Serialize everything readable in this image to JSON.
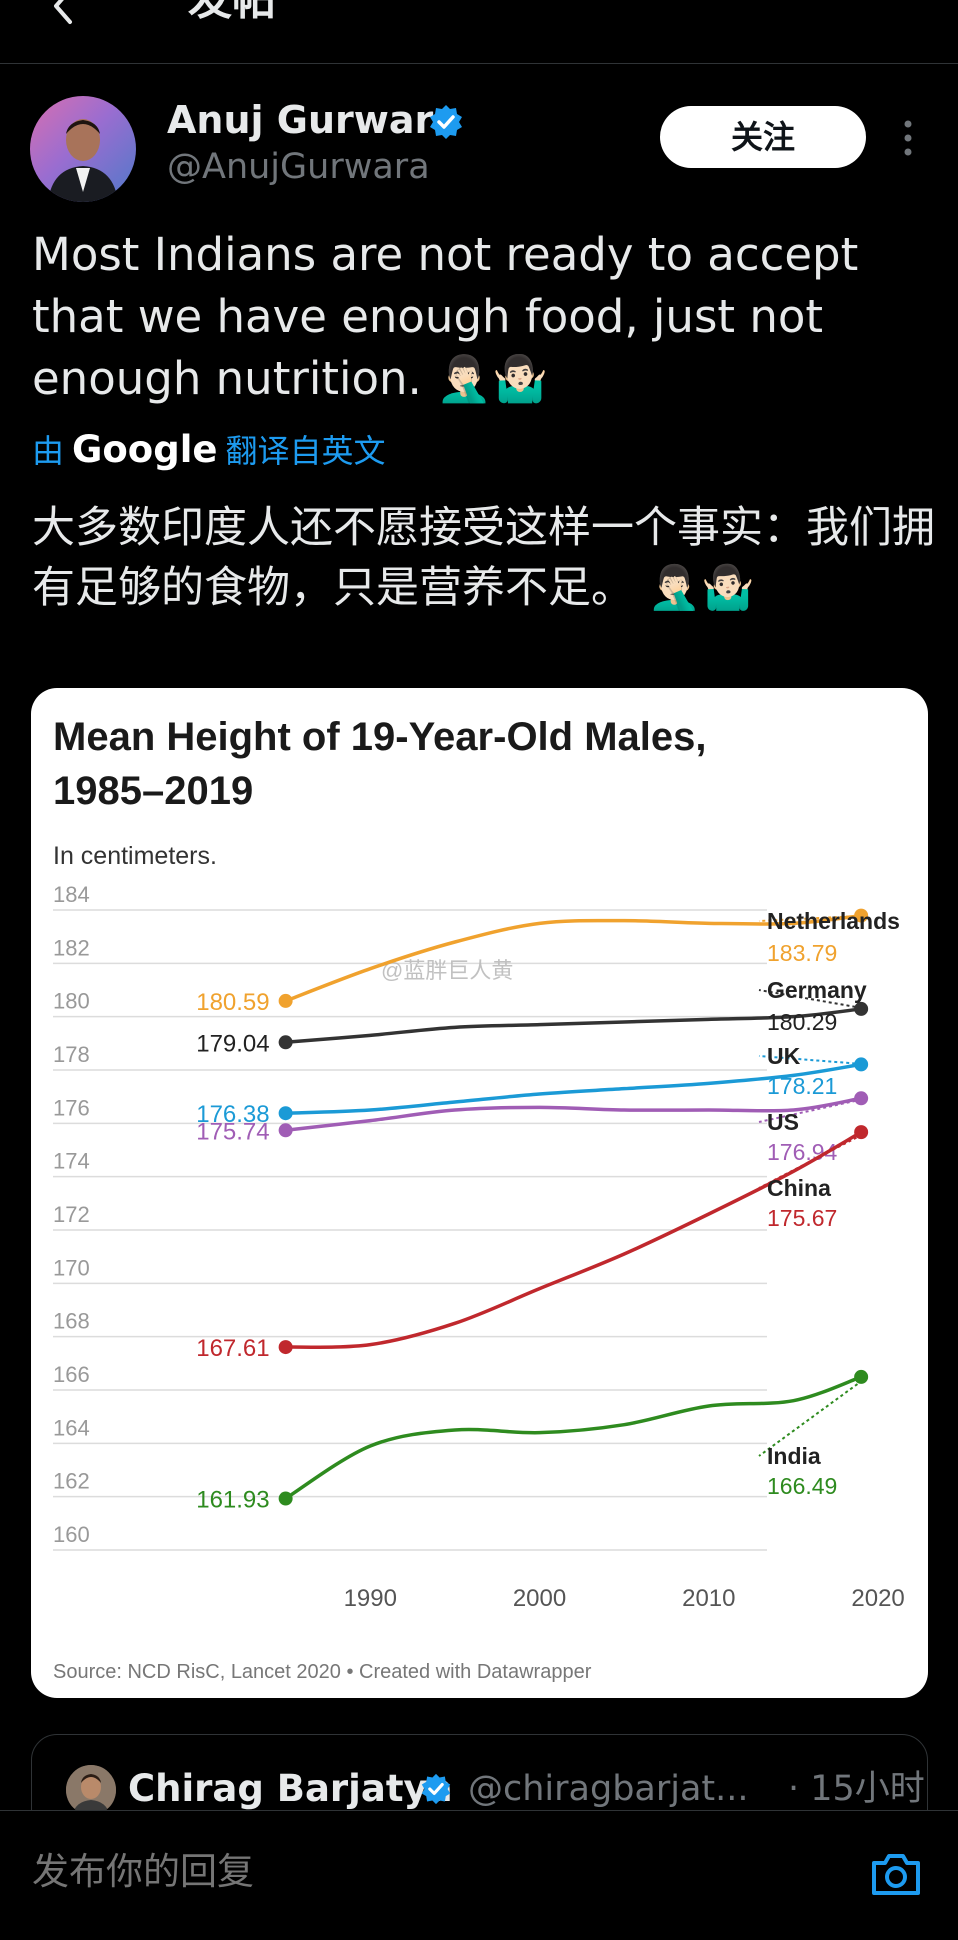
{
  "header": {
    "title": "发帖"
  },
  "author": {
    "name": "Anuj Gurwara",
    "handle": "@AnujGurwara"
  },
  "follow_label": "关注",
  "tweet": {
    "text": "Most Indians are not ready to accept that we have enough food, just not enough nutrition. 🤦🏻‍♂️🤷🏻‍♂️"
  },
  "translation": {
    "prefix": "由",
    "provider": "Google",
    "suffix": "翻译自英文",
    "text": "大多数印度人还不愿接受这样一个事实：我们拥有足够的食物，只是营养不足。 🤦🏻‍♂️🤷🏻‍♂️"
  },
  "quote": {
    "name": "Chirag Barjatya",
    "handle": "@chiragbarjat...",
    "time": "· 15小时"
  },
  "reply": {
    "placeholder": "发布你的回复"
  },
  "icons": {
    "back": "back-arrow-icon",
    "verified": "verified-badge-icon",
    "more": "more-vertical-icon",
    "camera": "camera-icon"
  },
  "colors": {
    "accent": "#1d9bf0",
    "background": "#000000"
  },
  "chart_data": {
    "type": "line",
    "title_lines": [
      "Mean Height of 19-Year-Old Males,",
      "1985–2019"
    ],
    "subtitle": "In centimeters.",
    "watermark": "@蓝胖巨人黄",
    "source": "Source: NCD RisC, Lancet 2020 • Created with Datawrapper",
    "xlim": [
      1980,
      2021
    ],
    "ylim": [
      160,
      184
    ],
    "x_ticks": [
      1990,
      2000,
      2010,
      2020
    ],
    "y_ticks": [
      160,
      162,
      164,
      166,
      168,
      170,
      172,
      174,
      176,
      178,
      180,
      182,
      184
    ],
    "grid": true,
    "series": [
      {
        "name": "Netherlands",
        "color": "#f0a22e",
        "start_label": "180.59",
        "end_label": "183.79",
        "x": [
          1985,
          1990,
          1995,
          2000,
          2005,
          2010,
          2015,
          2019
        ],
        "y": [
          180.59,
          181.8,
          182.8,
          183.5,
          183.6,
          183.5,
          183.5,
          183.79
        ]
      },
      {
        "name": "Germany",
        "color": "#333333",
        "start_label": "179.04",
        "end_label": "180.29",
        "x": [
          1985,
          1990,
          1995,
          2000,
          2005,
          2010,
          2015,
          2019
        ],
        "y": [
          179.04,
          179.3,
          179.6,
          179.7,
          179.8,
          179.9,
          180.0,
          180.29
        ]
      },
      {
        "name": "UK",
        "color": "#1b9ad6",
        "start_label": "176.38",
        "end_label": "178.21",
        "x": [
          1985,
          1990,
          1995,
          2000,
          2005,
          2010,
          2015,
          2019
        ],
        "y": [
          176.38,
          176.5,
          176.8,
          177.1,
          177.3,
          177.5,
          177.8,
          178.21
        ]
      },
      {
        "name": "US",
        "color": "#a05db5",
        "start_label": "175.74",
        "end_label": "176.94",
        "x": [
          1985,
          1990,
          1995,
          2000,
          2005,
          2010,
          2015,
          2019
        ],
        "y": [
          175.74,
          176.1,
          176.5,
          176.6,
          176.5,
          176.5,
          176.5,
          176.94
        ]
      },
      {
        "name": "China",
        "color": "#c0282d",
        "start_label": "167.61",
        "end_label": "175.67",
        "x": [
          1985,
          1990,
          1995,
          2000,
          2005,
          2010,
          2015,
          2019
        ],
        "y": [
          167.61,
          167.7,
          168.5,
          169.8,
          171.1,
          172.6,
          174.2,
          175.67
        ]
      },
      {
        "name": "India",
        "color": "#2e8b1f",
        "start_label": "161.93",
        "end_label": "166.49",
        "x": [
          1985,
          1990,
          1995,
          2000,
          2005,
          2010,
          2015,
          2019
        ],
        "y": [
          161.93,
          163.9,
          164.5,
          164.4,
          164.7,
          165.4,
          165.6,
          166.49
        ]
      }
    ]
  }
}
